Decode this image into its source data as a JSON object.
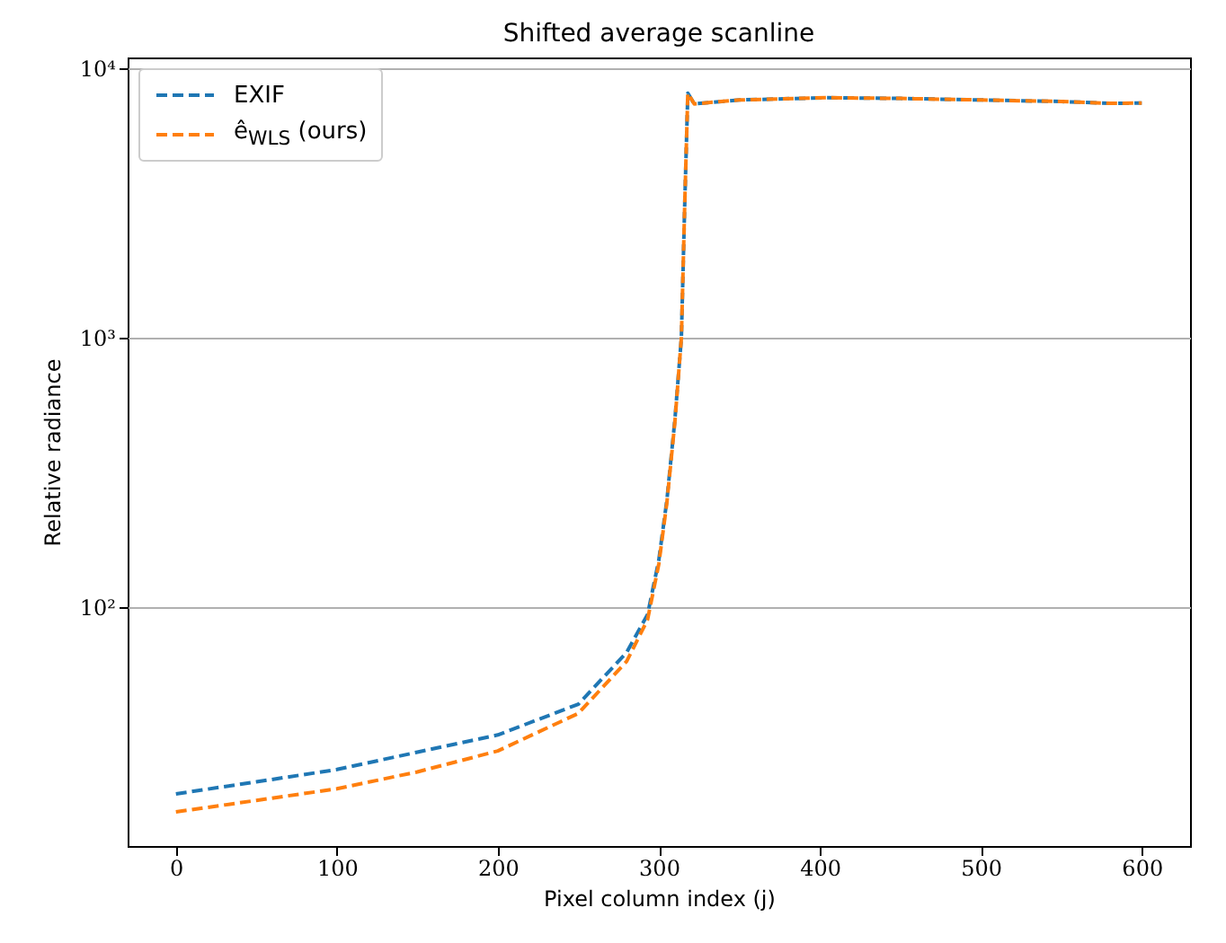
{
  "chart_data": {
    "type": "line",
    "title": "Shifted average scanline",
    "xlabel": "Pixel column index (j)",
    "ylabel": "Relative radiance",
    "x": [
      0,
      50,
      100,
      150,
      200,
      250,
      280,
      293,
      300,
      305,
      310,
      314,
      316,
      318,
      322,
      350,
      404,
      450,
      500,
      550,
      580,
      600
    ],
    "series": [
      {
        "name": "EXIF",
        "color": "#1f77b4",
        "values": [
          20.3,
          22.5,
          25,
          29,
          33.6,
          43.7,
          68,
          94,
          150,
          250,
          500,
          1000,
          3000,
          8100,
          7400,
          7650,
          7800,
          7750,
          7650,
          7550,
          7430,
          7450
        ]
      },
      {
        "name": "ê$_{WLS}$ (ours)",
        "color": "#ff7f0e",
        "values": [
          17.4,
          19.2,
          21.2,
          24.5,
          29.3,
          40.4,
          63,
          90,
          145,
          245,
          490,
          1000,
          3000,
          8100,
          7400,
          7650,
          7800,
          7750,
          7650,
          7550,
          7430,
          7450
        ]
      }
    ],
    "log": "y",
    "xlim": [
      -30,
      630
    ],
    "xticks": [
      0,
      100,
      200,
      300,
      400,
      500,
      600
    ],
    "ylim": [
      13,
      11000
    ],
    "yticks": [
      {
        "value": 100,
        "label": "10²"
      },
      {
        "value": 1000,
        "label": "10³"
      },
      {
        "value": 10000,
        "label": "10⁴"
      }
    ],
    "grid": "y",
    "legend": "top left",
    "line_style": "dashed",
    "marker": "none"
  }
}
